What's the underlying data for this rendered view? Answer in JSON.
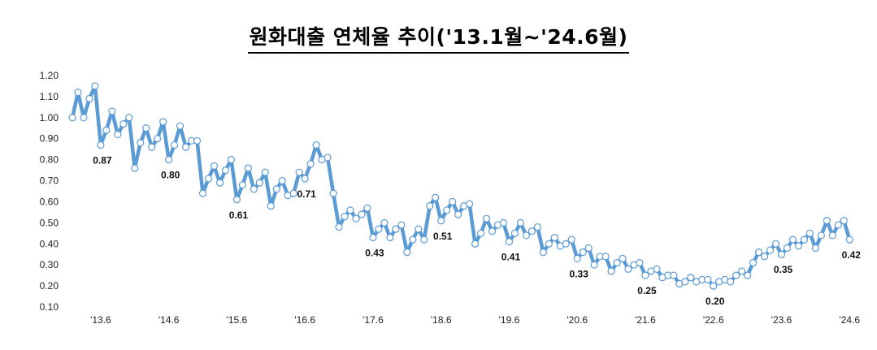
{
  "chart_data": {
    "type": "line",
    "title": "원화대출 연체율 추이('13.1월~'24.6월)",
    "xlabel": "",
    "ylabel": "",
    "ylim": [
      0.1,
      1.2
    ],
    "yticks": [
      "1.20",
      "1.10",
      "1.00",
      "0.90",
      "0.80",
      "0.70",
      "0.60",
      "0.50",
      "0.40",
      "0.30",
      "0.20",
      "0.10"
    ],
    "xticks": [
      "'13.6",
      "'14.6",
      "'15.6",
      "'16.6",
      "'17.6",
      "'18.6",
      "'19.6",
      "'20.6",
      "'21.6",
      "'22.6",
      "'23.6",
      "'24.6"
    ],
    "grid": false,
    "legend": "none",
    "color": "#5b9bd5",
    "series": [
      {
        "values": [
          1.0,
          1.12,
          1.0,
          1.09,
          1.15,
          0.87,
          0.94,
          1.03,
          0.92,
          0.97,
          1.0,
          0.76,
          0.88,
          0.95,
          0.86,
          0.9,
          0.98,
          0.8,
          0.87,
          0.96,
          0.86,
          0.89,
          0.89,
          0.64,
          0.71,
          0.77,
          0.69,
          0.75,
          0.8,
          0.61,
          0.68,
          0.76,
          0.66,
          0.69,
          0.74,
          0.58,
          0.66,
          0.7,
          0.63,
          0.64,
          0.74,
          0.71,
          0.78,
          0.87,
          0.8,
          0.81,
          0.64,
          0.48,
          0.53,
          0.56,
          0.52,
          0.54,
          0.57,
          0.43,
          0.47,
          0.5,
          0.43,
          0.47,
          0.49,
          0.36,
          0.42,
          0.47,
          0.42,
          0.58,
          0.62,
          0.51,
          0.56,
          0.6,
          0.54,
          0.58,
          0.59,
          0.4,
          0.45,
          0.52,
          0.46,
          0.49,
          0.5,
          0.41,
          0.45,
          0.5,
          0.44,
          0.46,
          0.48,
          0.36,
          0.4,
          0.43,
          0.39,
          0.4,
          0.42,
          0.33,
          0.36,
          0.38,
          0.3,
          0.34,
          0.34,
          0.27,
          0.31,
          0.33,
          0.28,
          0.3,
          0.31,
          0.25,
          0.27,
          0.28,
          0.24,
          0.25,
          0.25,
          0.21,
          0.22,
          0.24,
          0.22,
          0.23,
          0.23,
          0.2,
          0.22,
          0.23,
          0.22,
          0.25,
          0.27,
          0.25,
          0.31,
          0.36,
          0.34,
          0.37,
          0.4,
          0.35,
          0.38,
          0.42,
          0.39,
          0.42,
          0.45,
          0.38,
          0.44,
          0.51,
          0.44,
          0.49,
          0.51,
          0.42
        ]
      }
    ],
    "data_labels": [
      {
        "index": 5,
        "text": "0.87"
      },
      {
        "index": 17,
        "text": "0.80"
      },
      {
        "index": 29,
        "text": "0.61"
      },
      {
        "index": 41,
        "text": "0.71"
      },
      {
        "index": 53,
        "text": "0.43"
      },
      {
        "index": 65,
        "text": "0.51"
      },
      {
        "index": 77,
        "text": "0.41"
      },
      {
        "index": 89,
        "text": "0.33"
      },
      {
        "index": 101,
        "text": "0.25"
      },
      {
        "index": 113,
        "text": "0.20"
      },
      {
        "index": 125,
        "text": "0.35"
      },
      {
        "index": 137,
        "text": "0.42"
      }
    ]
  }
}
